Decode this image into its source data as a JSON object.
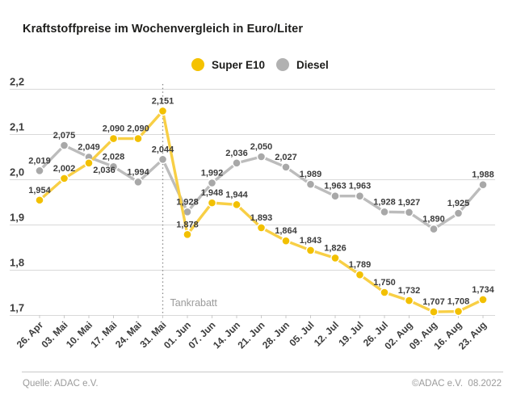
{
  "header": {
    "title": "Kraftstoffpreise im Wochenvergleich in Euro/Liter"
  },
  "legend": {
    "items": [
      {
        "label": "Super E10",
        "color": "#f5c200"
      },
      {
        "label": "Diesel",
        "color": "#b1b1b1"
      }
    ]
  },
  "chart_data": {
    "type": "line",
    "title": "Kraftstoffpreise im Wochenvergleich in Euro/Liter",
    "unit": "Euro/Liter",
    "categories": [
      "26. Apr",
      "03. Mai",
      "10. Mai",
      "17. Mai",
      "24. Mai",
      "31. Mai",
      "01. Jun",
      "07. Jun",
      "14. Jun",
      "21. Jun",
      "28. Jun",
      "05. Jul",
      "12. Jul",
      "19. Jul",
      "26. Jul",
      "02. Aug",
      "09. Aug",
      "16. Aug",
      "23. Aug"
    ],
    "series": [
      {
        "name": "Super E10",
        "dot_color": "#f2c000",
        "line_color": "#f8cf45",
        "values": [
          1.954,
          2.002,
          2.036,
          2.09,
          2.09,
          2.151,
          1.878,
          1.948,
          1.944,
          1.893,
          1.864,
          1.843,
          1.826,
          1.789,
          1.75,
          1.732,
          1.707,
          1.708,
          1.734
        ]
      },
      {
        "name": "Diesel",
        "dot_color": "#a8a8a8",
        "line_color": "#bcbcbc",
        "values": [
          2.019,
          2.075,
          2.049,
          2.028,
          1.994,
          2.044,
          1.928,
          1.992,
          2.036,
          2.05,
          2.027,
          1.989,
          1.963,
          1.963,
          1.928,
          1.927,
          1.89,
          1.925,
          1.988
        ]
      }
    ],
    "ylim": [
      1.7,
      2.2
    ],
    "yticks": [
      2.2,
      2.1,
      2.0,
      1.9,
      1.8,
      1.7
    ],
    "ytick_labels": [
      "2,2",
      "2,1",
      "2,0",
      "1,9",
      "1,8",
      "1,7"
    ],
    "grid": true,
    "legend_position": "top-center",
    "value_labels": "all-points, 3 decimals, comma separator",
    "label_overrides": [
      {
        "s": 0,
        "i": 2,
        "dx": 19,
        "dy": 12
      }
    ],
    "annotation": {
      "label": "Tankrabatt",
      "at_category": "31. Mai",
      "at_index": 5,
      "line_style": "dotted"
    }
  },
  "footer": {
    "left": "Quelle: ADAC e.V.",
    "right": "©ADAC e.V.  08.2022"
  },
  "colors": {
    "grid": "#d9d9d9",
    "axis_text": "#3c3c3c",
    "data_label": "#3c3c3c",
    "annotation_text": "#9b9b9b",
    "annotation_line": "#8a8a8a"
  }
}
